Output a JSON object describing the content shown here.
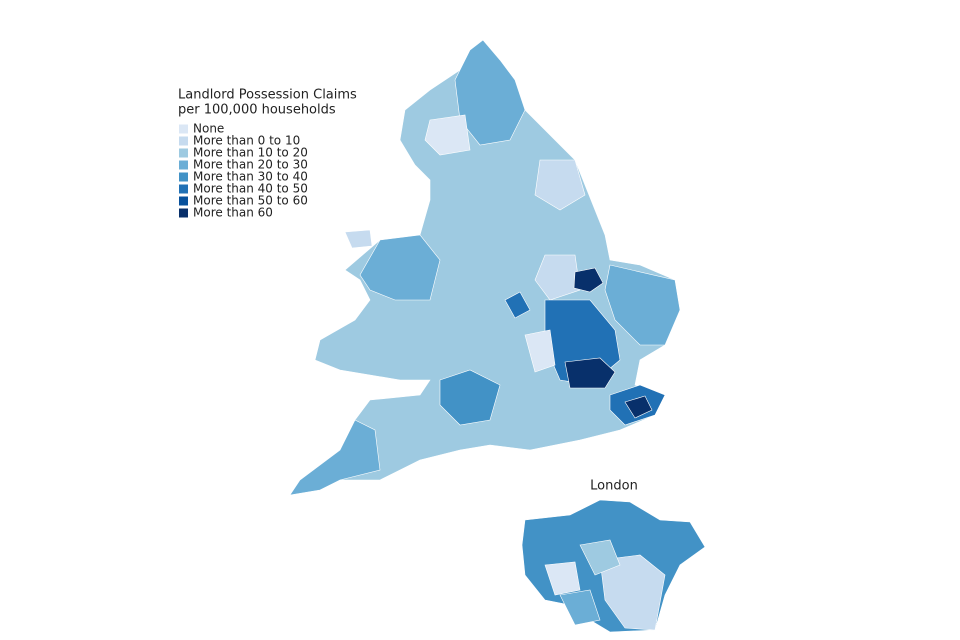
{
  "legend": {
    "title_lines": [
      "Landlord Possession Claims",
      "per 100,000 households"
    ],
    "items": [
      {
        "label": "None",
        "color": "#dbe7f5"
      },
      {
        "label": "More than 0 to 10",
        "color": "#c6dbef"
      },
      {
        "label": "More than 10 to 20",
        "color": "#9ecae1"
      },
      {
        "label": "More than 20 to 30",
        "color": "#6baed6"
      },
      {
        "label": "More than 30 to 40",
        "color": "#4292c6"
      },
      {
        "label": "More than 40 to 50",
        "color": "#2171b5"
      },
      {
        "label": "More than 50 to 60",
        "color": "#08519c"
      },
      {
        "label": "More than 60",
        "color": "#08306b"
      }
    ]
  },
  "inset": {
    "title": "London"
  }
}
